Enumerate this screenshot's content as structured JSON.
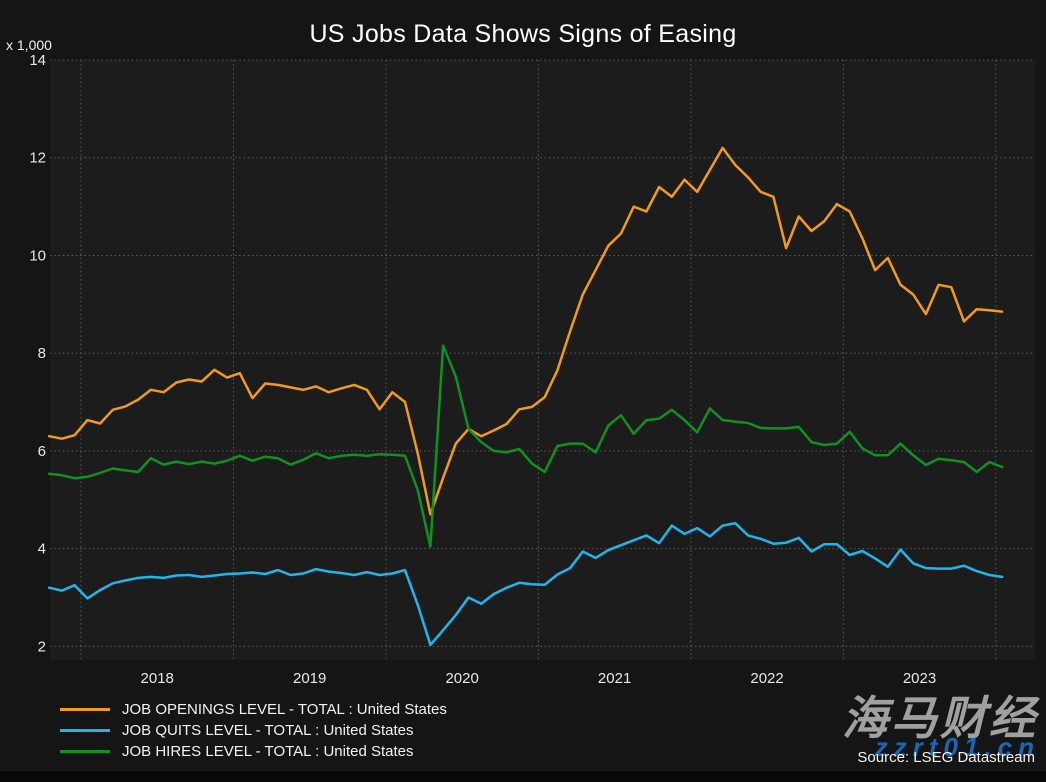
{
  "title": "US Jobs Data Shows Signs of Easing",
  "axis_unit": "x 1,000",
  "source": "Source: LSEG Datastream",
  "watermark": {
    "brand": "海马财经",
    "site": "zzrt01.cn"
  },
  "colors": {
    "background": "#151515",
    "plot_background": "#1c1c1c",
    "gridline": "#5c5c5c",
    "text": "#e8e8e8",
    "openings": "#F29B17",
    "quits": "#1FB6EC",
    "hires": "#0E9220"
  },
  "chart_data": {
    "type": "line",
    "title": "US Jobs Data Shows Signs of Easing",
    "y_unit_label": "x 1,000",
    "frequency": "monthly",
    "x_start": "2017-10",
    "x_end": "2024-01",
    "x_tick_years": [
      "2018",
      "2019",
      "2020",
      "2021",
      "2022",
      "2023"
    ],
    "yticks": [
      2,
      4,
      6,
      8,
      10,
      12,
      14
    ],
    "ylim": [
      1.72,
      14
    ],
    "grid": "dotted",
    "legend_position": "bottom-left",
    "series": [
      {
        "name": "JOB OPENINGS LEVEL - TOTAL : United States",
        "color": "#F29B17",
        "values": [
          6.3,
          6.25,
          6.32,
          6.63,
          6.56,
          6.84,
          6.91,
          7.05,
          7.25,
          7.2,
          7.4,
          7.46,
          7.42,
          7.66,
          7.5,
          7.59,
          7.08,
          7.38,
          7.35,
          7.3,
          7.25,
          7.32,
          7.2,
          7.28,
          7.35,
          7.25,
          6.85,
          7.2,
          7.0,
          5.95,
          4.7,
          5.45,
          6.15,
          6.45,
          6.3,
          6.42,
          6.55,
          6.85,
          6.9,
          7.1,
          7.65,
          8.45,
          9.2,
          9.7,
          10.2,
          10.45,
          11.0,
          10.9,
          11.4,
          11.2,
          11.55,
          11.3,
          11.75,
          12.2,
          11.85,
          11.6,
          11.3,
          11.2,
          10.15,
          10.8,
          10.5,
          10.7,
          11.05,
          10.9,
          10.35,
          9.7,
          9.95,
          9.4,
          9.2,
          8.8,
          9.4,
          9.35,
          8.65,
          8.9,
          8.88,
          8.85
        ]
      },
      {
        "name": "JOB QUITS LEVEL - TOTAL : United States",
        "color": "#1FB6EC",
        "values": [
          3.2,
          3.14,
          3.25,
          2.98,
          3.15,
          3.29,
          3.35,
          3.4,
          3.42,
          3.4,
          3.45,
          3.46,
          3.42,
          3.45,
          3.48,
          3.49,
          3.51,
          3.48,
          3.56,
          3.46,
          3.49,
          3.58,
          3.53,
          3.5,
          3.46,
          3.52,
          3.46,
          3.49,
          3.56,
          2.85,
          2.03,
          2.33,
          2.64,
          3.0,
          2.87,
          3.07,
          3.2,
          3.3,
          3.27,
          3.26,
          3.47,
          3.6,
          3.94,
          3.81,
          3.97,
          4.07,
          4.17,
          4.27,
          4.11,
          4.47,
          4.3,
          4.42,
          4.25,
          4.47,
          4.52,
          4.27,
          4.2,
          4.1,
          4.12,
          4.22,
          3.94,
          4.09,
          4.09,
          3.87,
          3.95,
          3.8,
          3.63,
          3.98,
          3.7,
          3.6,
          3.59,
          3.59,
          3.65,
          3.54,
          3.46,
          3.42
        ]
      },
      {
        "name": "JOB HIRES LEVEL - TOTAL : United States",
        "color": "#0E9220",
        "values": [
          5.53,
          5.5,
          5.44,
          5.47,
          5.55,
          5.64,
          5.6,
          5.57,
          5.85,
          5.72,
          5.78,
          5.73,
          5.78,
          5.74,
          5.8,
          5.9,
          5.8,
          5.88,
          5.85,
          5.72,
          5.82,
          5.95,
          5.85,
          5.9,
          5.92,
          5.9,
          5.93,
          5.92,
          5.9,
          5.2,
          4.04,
          8.15,
          7.52,
          6.45,
          6.18,
          6.0,
          5.97,
          6.04,
          5.74,
          5.57,
          6.1,
          6.15,
          6.15,
          5.97,
          6.52,
          6.73,
          6.35,
          6.63,
          6.66,
          6.84,
          6.63,
          6.38,
          6.87,
          6.63,
          6.6,
          6.57,
          6.47,
          6.46,
          6.46,
          6.49,
          6.18,
          6.12,
          6.15,
          6.39,
          6.05,
          5.91,
          5.91,
          6.15,
          5.91,
          5.71,
          5.84,
          5.81,
          5.77,
          5.57,
          5.77,
          5.67
        ]
      }
    ]
  }
}
